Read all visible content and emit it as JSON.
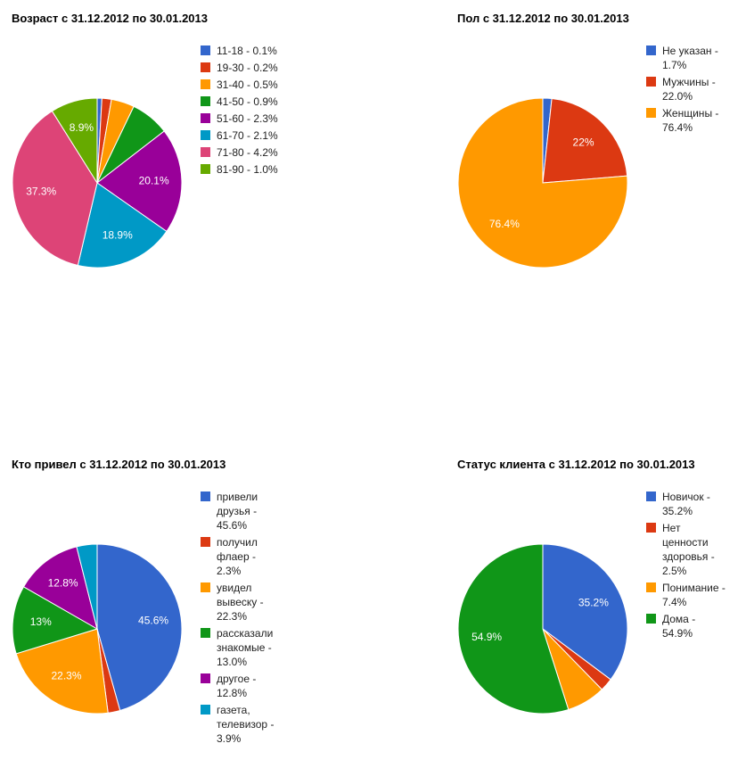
{
  "chart_data": [
    {
      "type": "pie",
      "title": "Возраст с 31.12.2012 по 30.01.2013",
      "legend": "right",
      "categories": [
        "11-18 - 0.1%",
        "19-30 - 0.2%",
        "31-40 - 0.5%",
        "41-50 - 0.9%",
        "51-60 - 2.3%",
        "61-70 - 2.1%",
        "71-80 - 4.2%",
        "81-90 - 1.0%"
      ],
      "values": [
        0.9,
        1.8,
        4.4,
        7.4,
        20.1,
        18.9,
        37.3,
        8.9
      ],
      "value_labels": [
        null,
        null,
        null,
        null,
        "20.1%",
        "18.9%",
        "37.3%",
        "8.9%"
      ],
      "colors": [
        "#3366cc",
        "#dc3912",
        "#ff9900",
        "#109618",
        "#990099",
        "#0099c6",
        "#dd4477",
        "#66aa00"
      ]
    },
    {
      "type": "pie",
      "title": "Пол с 31.12.2012 по 30.01.2013",
      "legend": "right",
      "categories": [
        "Не указан - 1.7%",
        "Мужчины - 22.0%",
        "Женщины - 76.4%"
      ],
      "values": [
        1.7,
        22.0,
        76.4
      ],
      "value_labels": [
        null,
        "22%",
        "76.4%"
      ],
      "colors": [
        "#3366cc",
        "#dc3912",
        "#ff9900"
      ]
    },
    {
      "type": "pie",
      "title": "Кто привел с 31.12.2012 по 30.01.2013",
      "legend": "right",
      "categories": [
        "привели друзья - 45.6%",
        "получил флаер - 2.3%",
        "увидел вывеску - 22.3%",
        "рассказали знакомые - 13.0%",
        "другое - 12.8%",
        "газета, телевизор - 3.9%"
      ],
      "values": [
        45.6,
        2.3,
        22.3,
        13.0,
        12.8,
        3.9
      ],
      "value_labels": [
        "45.6%",
        null,
        "22.3%",
        "13%",
        "12.8%",
        null
      ],
      "colors": [
        "#3366cc",
        "#dc3912",
        "#ff9900",
        "#109618",
        "#990099",
        "#0099c6"
      ]
    },
    {
      "type": "pie",
      "title": "Статус клиента с 31.12.2012 по 30.01.2013",
      "legend": "right",
      "categories": [
        "Новичок - 35.2%",
        "Нет ценности здоровья - 2.5%",
        "Понимание - 7.4%",
        "Дома - 54.9%"
      ],
      "values": [
        35.2,
        2.5,
        7.4,
        54.9
      ],
      "value_labels": [
        "35.2%",
        null,
        null,
        "54.9%"
      ],
      "colors": [
        "#3366cc",
        "#dc3912",
        "#ff9900",
        "#109618"
      ]
    }
  ]
}
